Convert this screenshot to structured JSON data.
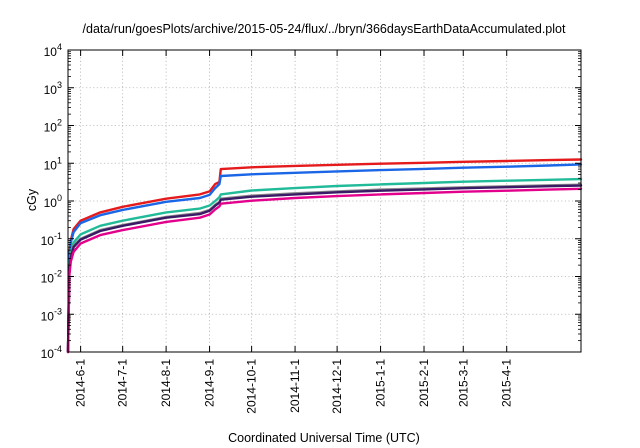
{
  "chart_data": {
    "type": "line",
    "title": "/data/run/goesPlots/archive/2015-05-24/flux/../bryn/366daysEarthDataAccumulated.plot",
    "xlabel": "Coordinated Universal Time (UTC)",
    "ylabel": "cGy",
    "y_scale": "log",
    "ylim": [
      0.0001,
      10000
    ],
    "xlim": [
      "2014-05-23",
      "2015-05-24"
    ],
    "grid": true,
    "legend": "none",
    "y_ticks": [
      {
        "base": "10",
        "exp": "-4"
      },
      {
        "base": "10",
        "exp": "-3"
      },
      {
        "base": "10",
        "exp": "-2"
      },
      {
        "base": "10",
        "exp": "-1"
      },
      {
        "base": "10",
        "exp": "0"
      },
      {
        "base": "10",
        "exp": "1"
      },
      {
        "base": "10",
        "exp": "2"
      },
      {
        "base": "10",
        "exp": "3"
      },
      {
        "base": "10",
        "exp": "4"
      }
    ],
    "x_ticks": [
      {
        "date": "2014-06-01",
        "label": "2014-6-1"
      },
      {
        "date": "2014-07-01",
        "label": "2014-7-1"
      },
      {
        "date": "2014-08-01",
        "label": "2014-8-1"
      },
      {
        "date": "2014-09-01",
        "label": "2014-9-1"
      },
      {
        "date": "2014-10-01",
        "label": "2014-10-1"
      },
      {
        "date": "2014-11-01",
        "label": "2014-11-1"
      },
      {
        "date": "2014-12-01",
        "label": "2014-12-1"
      },
      {
        "date": "2015-01-01",
        "label": "2015-1-1"
      },
      {
        "date": "2015-02-01",
        "label": "2015-2-1"
      },
      {
        "date": "2015-03-01",
        "label": "2015-3-1"
      },
      {
        "date": "2015-04-01",
        "label": "2015-4-1"
      }
    ],
    "series": [
      {
        "color": "#e41a1c",
        "x": [
          "2014-05-23",
          "2014-05-24",
          "2014-05-25",
          "2014-05-27",
          "2014-06-01",
          "2014-06-15",
          "2014-07-01",
          "2014-08-01",
          "2014-08-25",
          "2014-09-01",
          "2014-09-05",
          "2014-09-08",
          "2014-09-09",
          "2014-10-01",
          "2014-11-01",
          "2014-12-01",
          "2015-01-01",
          "2015-02-01",
          "2015-03-01",
          "2015-04-01",
          "2015-05-01",
          "2015-05-24"
        ],
        "y": [
          0.0001,
          0.04,
          0.09,
          0.18,
          0.3,
          0.5,
          0.7,
          1.15,
          1.5,
          1.8,
          2.8,
          3.2,
          7.0,
          7.8,
          8.5,
          9.1,
          9.7,
          10.3,
          10.9,
          11.5,
          12.1,
          12.6
        ]
      },
      {
        "color": "#1a66e6",
        "x": [
          "2014-05-23",
          "2014-05-24",
          "2014-05-25",
          "2014-05-27",
          "2014-06-01",
          "2014-06-15",
          "2014-07-01",
          "2014-08-01",
          "2014-08-25",
          "2014-09-01",
          "2014-09-05",
          "2014-09-08",
          "2014-09-09",
          "2014-10-01",
          "2014-11-01",
          "2014-12-01",
          "2015-01-01",
          "2015-02-01",
          "2015-03-01",
          "2015-04-01",
          "2015-05-01",
          "2015-05-24"
        ],
        "y": [
          0.0001,
          0.035,
          0.08,
          0.15,
          0.26,
          0.42,
          0.58,
          0.95,
          1.2,
          1.45,
          2.2,
          2.8,
          4.6,
          5.1,
          5.6,
          6.1,
          6.6,
          7.1,
          7.6,
          8.1,
          8.7,
          9.3
        ]
      },
      {
        "color": "#22bb99",
        "x": [
          "2014-05-23",
          "2014-05-24",
          "2014-05-25",
          "2014-05-27",
          "2014-06-01",
          "2014-06-15",
          "2014-07-01",
          "2014-08-01",
          "2014-08-25",
          "2014-09-01",
          "2014-09-05",
          "2014-09-08",
          "2014-09-09",
          "2014-10-01",
          "2014-11-01",
          "2014-12-01",
          "2015-01-01",
          "2015-02-01",
          "2015-03-01",
          "2015-04-01",
          "2015-05-01",
          "2015-05-24"
        ],
        "y": [
          0.0001,
          0.02,
          0.045,
          0.08,
          0.13,
          0.22,
          0.3,
          0.5,
          0.63,
          0.76,
          1.0,
          1.25,
          1.5,
          1.9,
          2.2,
          2.5,
          2.75,
          3.0,
          3.25,
          3.45,
          3.65,
          3.8
        ]
      },
      {
        "color": "#8a8a8a",
        "x": [
          "2014-05-23",
          "2014-05-24",
          "2014-05-25",
          "2014-05-27",
          "2014-06-01",
          "2014-06-15",
          "2014-07-01",
          "2014-08-01",
          "2014-08-25",
          "2014-09-01",
          "2014-09-05",
          "2014-09-08",
          "2014-09-09",
          "2014-10-01",
          "2014-11-01",
          "2014-12-01",
          "2015-01-01",
          "2015-02-01",
          "2015-03-01",
          "2015-04-01",
          "2015-05-01",
          "2015-05-24"
        ],
        "y": [
          0.0001,
          0.016,
          0.035,
          0.065,
          0.1,
          0.17,
          0.23,
          0.38,
          0.48,
          0.58,
          0.8,
          0.95,
          1.15,
          1.38,
          1.6,
          1.8,
          2.0,
          2.15,
          2.3,
          2.45,
          2.6,
          2.7
        ]
      },
      {
        "color": "#3a1a66",
        "x": [
          "2014-05-23",
          "2014-05-24",
          "2014-05-25",
          "2014-05-27",
          "2014-06-01",
          "2014-06-15",
          "2014-07-01",
          "2014-08-01",
          "2014-08-25",
          "2014-09-01",
          "2014-09-05",
          "2014-09-08",
          "2014-09-09",
          "2014-10-01",
          "2014-11-01",
          "2014-12-01",
          "2015-01-01",
          "2015-02-01",
          "2015-03-01",
          "2015-04-01",
          "2015-05-01",
          "2015-05-24"
        ],
        "y": [
          0.0001,
          0.015,
          0.032,
          0.06,
          0.095,
          0.16,
          0.22,
          0.36,
          0.45,
          0.55,
          0.75,
          0.9,
          1.08,
          1.3,
          1.5,
          1.7,
          1.88,
          2.03,
          2.18,
          2.32,
          2.46,
          2.56
        ]
      },
      {
        "color": "#e3008c",
        "x": [
          "2014-05-23",
          "2014-05-24",
          "2014-05-25",
          "2014-05-27",
          "2014-06-01",
          "2014-06-15",
          "2014-07-01",
          "2014-08-01",
          "2014-08-25",
          "2014-09-01",
          "2014-09-05",
          "2014-09-08",
          "2014-09-09",
          "2014-10-01",
          "2014-11-01",
          "2014-12-01",
          "2015-01-01",
          "2015-02-01",
          "2015-03-01",
          "2015-04-01",
          "2015-05-01",
          "2015-05-24"
        ],
        "y": [
          0.0001,
          0.011,
          0.025,
          0.045,
          0.075,
          0.125,
          0.17,
          0.28,
          0.36,
          0.44,
          0.6,
          0.72,
          0.85,
          1.02,
          1.2,
          1.35,
          1.5,
          1.63,
          1.76,
          1.88,
          2.0,
          2.1
        ]
      }
    ]
  }
}
